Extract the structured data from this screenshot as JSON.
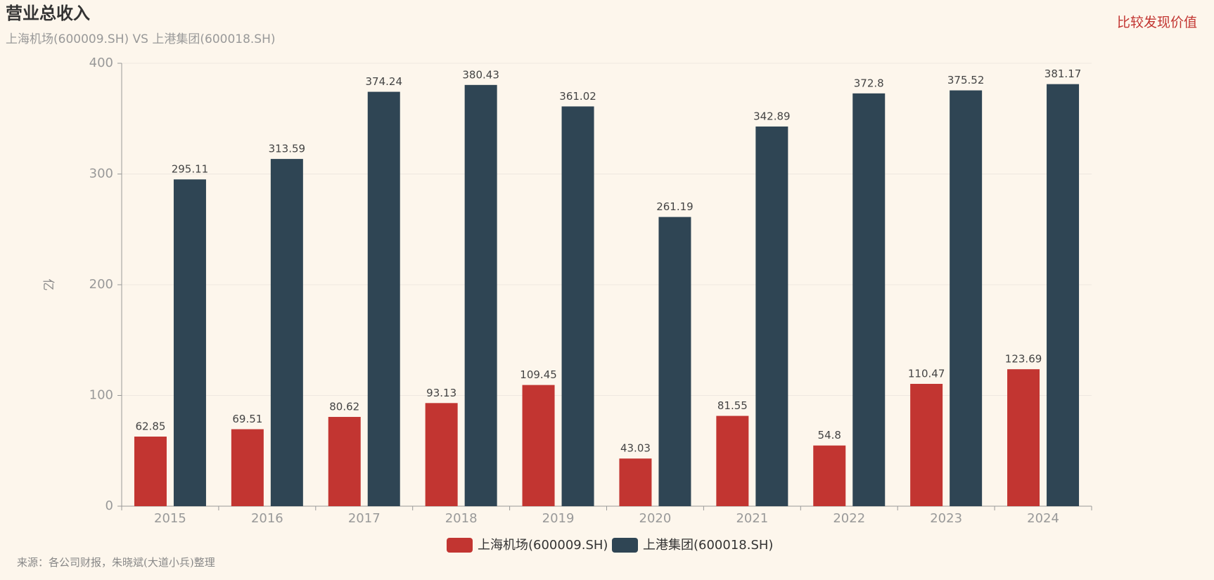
{
  "chart_data": {
    "type": "bar",
    "title": "营业总收入",
    "subtitle": "上海机场(600009.SH) VS 上港集团(600018.SH)",
    "tagline": "比较发现价值",
    "source": "来源：各公司财报，朱晓斌(大道小兵)整理",
    "y_label": "亿",
    "categories": [
      "2015",
      "2016",
      "2017",
      "2018",
      "2019",
      "2020",
      "2021",
      "2022",
      "2023",
      "2024"
    ],
    "series": [
      {
        "name": "上海机场(600009.SH)",
        "color": "#c23531",
        "values": [
          62.85,
          69.51,
          80.62,
          93.13,
          109.45,
          43.03,
          81.55,
          54.8,
          110.47,
          123.69
        ]
      },
      {
        "name": "上港集团(600018.SH)",
        "color": "#2f4554",
        "values": [
          295.11,
          313.59,
          374.24,
          380.43,
          361.02,
          261.19,
          342.89,
          372.8,
          375.52,
          381.17
        ]
      }
    ],
    "ylim": [
      0,
      400
    ],
    "yticks": [
      0,
      100,
      200,
      300,
      400
    ],
    "grid": true
  }
}
